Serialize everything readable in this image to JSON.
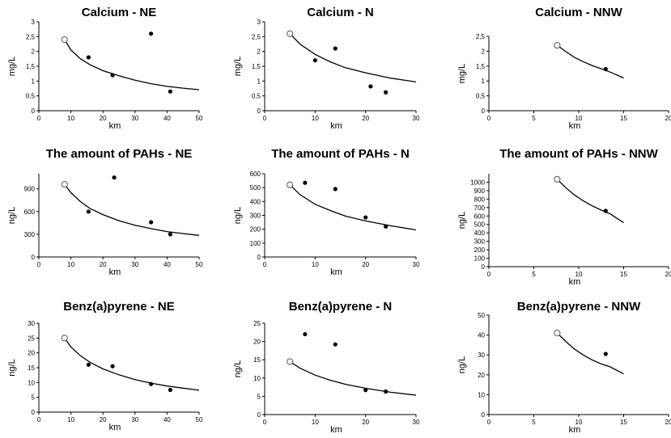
{
  "chart_data": [
    {
      "type": "scatter",
      "title": "Calcium  - NE",
      "xlabel": "km",
      "ylabel": "mg/L",
      "xlim": [
        0,
        50
      ],
      "xticks": [
        0,
        10,
        20,
        30,
        40,
        50
      ],
      "ylim": [
        0,
        3
      ],
      "yticks": [
        "0",
        "0,5",
        "1",
        "1,5",
        "2",
        "2,5",
        "3"
      ],
      "open_point": {
        "x": 8,
        "y": 2.4
      },
      "points": [
        {
          "x": 15.5,
          "y": 1.8
        },
        {
          "x": 23,
          "y": 1.2
        },
        {
          "x": 35,
          "y": 2.6
        },
        {
          "x": 41,
          "y": 0.65
        }
      ],
      "curve": [
        {
          "x": 8,
          "y": 2.4
        },
        {
          "x": 10,
          "y": 2.05
        },
        {
          "x": 13,
          "y": 1.75
        },
        {
          "x": 16,
          "y": 1.55
        },
        {
          "x": 20,
          "y": 1.35
        },
        {
          "x": 25,
          "y": 1.18
        },
        {
          "x": 30,
          "y": 1.03
        },
        {
          "x": 35,
          "y": 0.91
        },
        {
          "x": 40,
          "y": 0.82
        },
        {
          "x": 45,
          "y": 0.76
        },
        {
          "x": 50,
          "y": 0.71
        }
      ]
    },
    {
      "type": "scatter",
      "title": "Calcium  - N",
      "xlabel": "km",
      "ylabel": "mg/L",
      "xlim": [
        0,
        30
      ],
      "xticks": [
        0,
        10,
        20,
        30
      ],
      "ylim": [
        0,
        3
      ],
      "yticks": [
        "0",
        "0,5",
        "1",
        "1,5",
        "2",
        "2,5",
        "3"
      ],
      "open_point": {
        "x": 5,
        "y": 2.6
      },
      "points": [
        {
          "x": 10,
          "y": 1.7
        },
        {
          "x": 14,
          "y": 2.1
        },
        {
          "x": 21,
          "y": 0.82
        },
        {
          "x": 24,
          "y": 0.62
        }
      ],
      "curve": [
        {
          "x": 5,
          "y": 2.6
        },
        {
          "x": 7,
          "y": 2.25
        },
        {
          "x": 10,
          "y": 1.9
        },
        {
          "x": 13,
          "y": 1.65
        },
        {
          "x": 16,
          "y": 1.45
        },
        {
          "x": 20,
          "y": 1.28
        },
        {
          "x": 25,
          "y": 1.1
        },
        {
          "x": 30,
          "y": 0.97
        }
      ]
    },
    {
      "type": "scatter",
      "title": "Calcium  - NNW",
      "xlabel": "km",
      "ylabel": "mg/L",
      "xlim": [
        0,
        20
      ],
      "xticks": [
        0,
        5,
        10,
        15,
        20
      ],
      "ylim": [
        0,
        2.5
      ],
      "yticks": [
        "0",
        "0,5",
        "1",
        "1,5",
        "2",
        "2,5"
      ],
      "open_point": {
        "x": 7.6,
        "y": 2.2
      },
      "points": [
        {
          "x": 13,
          "y": 1.4
        }
      ],
      "curve": [
        {
          "x": 7.6,
          "y": 2.2
        },
        {
          "x": 8.5,
          "y": 2.0
        },
        {
          "x": 9.5,
          "y": 1.8
        },
        {
          "x": 10.5,
          "y": 1.65
        },
        {
          "x": 11.5,
          "y": 1.52
        },
        {
          "x": 12.5,
          "y": 1.41
        },
        {
          "x": 13.5,
          "y": 1.3
        },
        {
          "x": 15,
          "y": 1.1
        }
      ]
    },
    {
      "type": "scatter",
      "title": "The amount of PAHs  - NE",
      "xlabel": "km",
      "ylabel": "ng/L",
      "xlim": [
        0,
        50
      ],
      "xticks": [
        0,
        10,
        20,
        30,
        40,
        50
      ],
      "ylim": [
        0,
        1100
      ],
      "yticks": [
        "0",
        "300",
        "600",
        "900"
      ],
      "ytick_values": [
        0,
        300,
        600,
        900
      ],
      "open_point": {
        "x": 8,
        "y": 960
      },
      "points": [
        {
          "x": 15.5,
          "y": 600
        },
        {
          "x": 23.5,
          "y": 1050
        },
        {
          "x": 35,
          "y": 460
        },
        {
          "x": 41,
          "y": 300
        }
      ],
      "curve": [
        {
          "x": 8,
          "y": 960
        },
        {
          "x": 10,
          "y": 850
        },
        {
          "x": 13,
          "y": 730
        },
        {
          "x": 16,
          "y": 640
        },
        {
          "x": 20,
          "y": 560
        },
        {
          "x": 25,
          "y": 480
        },
        {
          "x": 30,
          "y": 420
        },
        {
          "x": 35,
          "y": 375
        },
        {
          "x": 40,
          "y": 335
        },
        {
          "x": 45,
          "y": 310
        },
        {
          "x": 50,
          "y": 285
        }
      ]
    },
    {
      "type": "scatter",
      "title": "The amount of PAHs  - N",
      "xlabel": "km",
      "ylabel": "ng/L",
      "xlim": [
        0,
        30
      ],
      "xticks": [
        0,
        10,
        20,
        30
      ],
      "ylim": [
        0,
        600
      ],
      "yticks": [
        "0",
        "100",
        "200",
        "300",
        "400",
        "500",
        "600"
      ],
      "open_point": {
        "x": 5,
        "y": 520
      },
      "points": [
        {
          "x": 8,
          "y": 535
        },
        {
          "x": 14,
          "y": 490
        },
        {
          "x": 20,
          "y": 285
        },
        {
          "x": 24,
          "y": 220
        }
      ],
      "curve": [
        {
          "x": 5,
          "y": 520
        },
        {
          "x": 7,
          "y": 450
        },
        {
          "x": 10,
          "y": 380
        },
        {
          "x": 13,
          "y": 335
        },
        {
          "x": 16,
          "y": 295
        },
        {
          "x": 20,
          "y": 260
        },
        {
          "x": 25,
          "y": 225
        },
        {
          "x": 30,
          "y": 195
        }
      ]
    },
    {
      "type": "scatter",
      "title": "The amount of PAHs  - NNW",
      "xlabel": "km",
      "ylabel": "ng/L",
      "xlim": [
        0,
        20
      ],
      "xticks": [
        0,
        5,
        10,
        15,
        20
      ],
      "ylim": [
        0,
        1100
      ],
      "yticks": [
        "0",
        "100",
        "200",
        "300",
        "400",
        "500",
        "600",
        "700",
        "800",
        "900",
        "1000"
      ],
      "ytick_values": [
        0,
        100,
        200,
        300,
        400,
        500,
        600,
        700,
        800,
        900,
        1000
      ],
      "open_point": {
        "x": 7.6,
        "y": 1035
      },
      "points": [
        {
          "x": 13,
          "y": 660
        }
      ],
      "curve": [
        {
          "x": 7.6,
          "y": 1035
        },
        {
          "x": 8.5,
          "y": 940
        },
        {
          "x": 9.5,
          "y": 850
        },
        {
          "x": 10.5,
          "y": 780
        },
        {
          "x": 11.5,
          "y": 720
        },
        {
          "x": 12.5,
          "y": 670
        },
        {
          "x": 13.5,
          "y": 625
        },
        {
          "x": 15,
          "y": 520
        }
      ]
    },
    {
      "type": "scatter",
      "title": "Benz(a)pyrene  - NE",
      "xlabel": "km",
      "ylabel": "ng/L",
      "xlim": [
        0,
        50
      ],
      "xticks": [
        0,
        10,
        20,
        30,
        40,
        50
      ],
      "ylim": [
        0,
        30
      ],
      "yticks": [
        "0",
        "5",
        "10",
        "15",
        "20",
        "25",
        "30"
      ],
      "open_point": {
        "x": 8,
        "y": 25
      },
      "points": [
        {
          "x": 15.5,
          "y": 16
        },
        {
          "x": 23,
          "y": 15.5
        },
        {
          "x": 35,
          "y": 9.5
        },
        {
          "x": 41,
          "y": 7.5
        }
      ],
      "curve": [
        {
          "x": 8,
          "y": 25
        },
        {
          "x": 10,
          "y": 22
        },
        {
          "x": 13,
          "y": 19
        },
        {
          "x": 16,
          "y": 16.8
        },
        {
          "x": 20,
          "y": 14.6
        },
        {
          "x": 25,
          "y": 12.6
        },
        {
          "x": 30,
          "y": 11
        },
        {
          "x": 35,
          "y": 9.8
        },
        {
          "x": 40,
          "y": 8.8
        },
        {
          "x": 45,
          "y": 8.1
        },
        {
          "x": 50,
          "y": 7.4
        }
      ]
    },
    {
      "type": "scatter",
      "title": "Benz(a)pyrene  - N",
      "xlabel": "km",
      "ylabel": "ng/L",
      "xlim": [
        0,
        30
      ],
      "xticks": [
        0,
        10,
        20,
        30
      ],
      "ylim": [
        0,
        25
      ],
      "yticks": [
        "0",
        "5",
        "10",
        "15",
        "20",
        "25"
      ],
      "open_point": {
        "x": 5,
        "y": 14.5
      },
      "points": [
        {
          "x": 8,
          "y": 22
        },
        {
          "x": 14,
          "y": 19.2
        },
        {
          "x": 20,
          "y": 6.7
        },
        {
          "x": 24,
          "y": 6.3
        }
      ],
      "curve": [
        {
          "x": 5,
          "y": 14.5
        },
        {
          "x": 7,
          "y": 12.7
        },
        {
          "x": 10,
          "y": 10.8
        },
        {
          "x": 13,
          "y": 9.4
        },
        {
          "x": 16,
          "y": 8.3
        },
        {
          "x": 20,
          "y": 7.2
        },
        {
          "x": 25,
          "y": 6.1
        },
        {
          "x": 30,
          "y": 5.3
        }
      ]
    },
    {
      "type": "scatter",
      "title": "Benz(a)pyrene  - NNW",
      "xlabel": "km",
      "ylabel": "ng/L",
      "xlim": [
        0,
        20
      ],
      "xticks": [
        0,
        5,
        10,
        15,
        20
      ],
      "ylim": [
        0,
        50
      ],
      "yticks": [
        "0",
        "10",
        "20",
        "30",
        "40",
        "50"
      ],
      "open_point": {
        "x": 7.6,
        "y": 41
      },
      "points": [
        {
          "x": 13,
          "y": 30.5
        }
      ],
      "curve": [
        {
          "x": 7.6,
          "y": 41
        },
        {
          "x": 8.5,
          "y": 37
        },
        {
          "x": 9.5,
          "y": 33
        },
        {
          "x": 10.5,
          "y": 30
        },
        {
          "x": 11.5,
          "y": 27.5
        },
        {
          "x": 12.5,
          "y": 25.5
        },
        {
          "x": 13.5,
          "y": 24
        },
        {
          "x": 15,
          "y": 20.5
        }
      ]
    }
  ]
}
